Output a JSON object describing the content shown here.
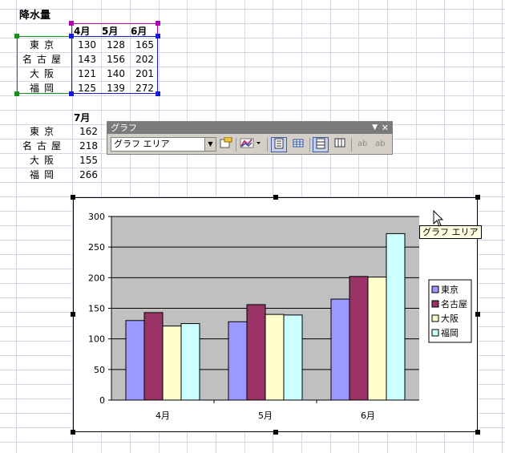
{
  "sheet": {
    "title": "降水量",
    "table1": {
      "headers": [
        "4月",
        "5月",
        "6月"
      ],
      "rows": [
        {
          "city": "東京",
          "values": [
            "130",
            "128",
            "165"
          ]
        },
        {
          "city": "名古屋",
          "values": [
            "143",
            "156",
            "202"
          ]
        },
        {
          "city": "大阪",
          "values": [
            "121",
            "140",
            "201"
          ]
        },
        {
          "city": "福岡",
          "values": [
            "125",
            "139",
            "272"
          ]
        }
      ]
    },
    "table2": {
      "header": "7月",
      "rows": [
        {
          "city": "東京",
          "value": "162"
        },
        {
          "city": "名古屋",
          "value": "218"
        },
        {
          "city": "大阪",
          "value": "155"
        },
        {
          "city": "福岡",
          "value": "266"
        }
      ]
    }
  },
  "toolbar": {
    "title": "グラフ",
    "object_selector": "グラフ エリア",
    "buttons": [
      "format-chart-area",
      "chart-type",
      "legend",
      "data-table",
      "by-row",
      "by-column",
      "angle-clockwise",
      "angle-counterclockwise"
    ]
  },
  "tooltip": "グラフ エリア",
  "chart_data": {
    "type": "bar",
    "categories": [
      "4月",
      "5月",
      "6月"
    ],
    "series": [
      {
        "name": "東京",
        "values": [
          130,
          128,
          165
        ],
        "color": "#9999ff"
      },
      {
        "name": "名古屋",
        "values": [
          143,
          156,
          202
        ],
        "color": "#993366"
      },
      {
        "name": "大阪",
        "values": [
          121,
          140,
          201
        ],
        "color": "#ffffcc"
      },
      {
        "name": "福岡",
        "values": [
          125,
          139,
          272
        ],
        "color": "#ccffff"
      }
    ],
    "yticks": [
      "0",
      "50",
      "100",
      "150",
      "200",
      "250",
      "300"
    ],
    "ylim": [
      0,
      300
    ],
    "plot_background": "#c0c0c0",
    "legend_position": "right",
    "grid": true
  }
}
